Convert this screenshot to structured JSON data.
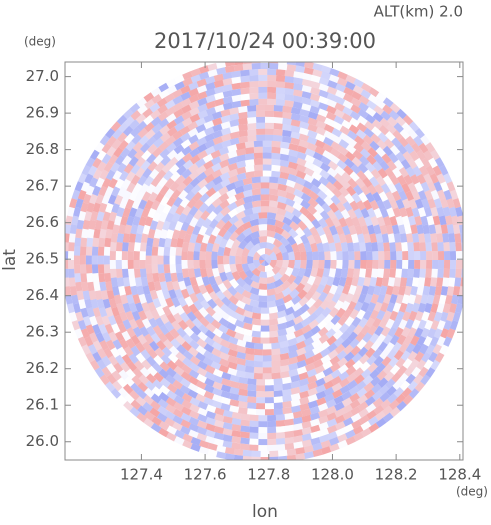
{
  "chart_data": {
    "type": "ppi",
    "title": "2017/10/24 00:39:00",
    "subtitle": "ALT(km) 2.0",
    "x_label": "lon",
    "y_label": "lat",
    "x_unit": "(deg)",
    "y_unit": "(deg)",
    "xlim": [
      127.16,
      128.41
    ],
    "ylim": [
      25.95,
      27.04
    ],
    "xticks": [
      127.4,
      127.6,
      127.8,
      {
        "value": 128,
        "label": "128.0"
      },
      128.2,
      128.4
    ],
    "yticks": [
      {
        "value": 26,
        "label": "26.0"
      },
      26.1,
      26.2,
      26.3,
      26.4,
      26.5,
      26.6,
      26.7,
      26.8,
      26.9,
      {
        "value": 27,
        "label": "27.0"
      }
    ],
    "colors": [
      "#f4a0a0",
      "#a0a8f4"
    ]
  }
}
